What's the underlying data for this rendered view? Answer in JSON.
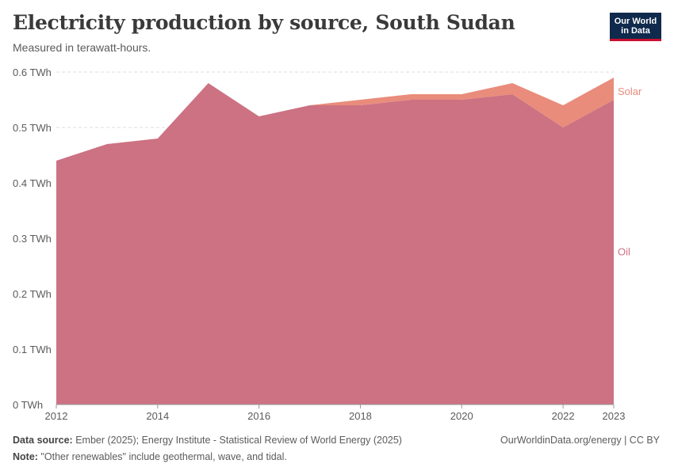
{
  "header": {
    "title": "Electricity production by source, South Sudan",
    "subtitle": "Measured in terawatt-hours."
  },
  "logo": {
    "line1": "Our World",
    "line2": "in Data"
  },
  "footer": {
    "source_label": "Data source:",
    "source_text": "Ember (2025); Energy Institute - Statistical Review of World Energy (2025)",
    "note_label": "Note:",
    "note_text": "\"Other renewables\" include geothermal, wave, and tidal.",
    "link_text": "OurWorldinData.org/energy | CC BY"
  },
  "chart_data": {
    "type": "area",
    "stacked": true,
    "title": "Electricity production by source, South Sudan",
    "ylabel": "TWh",
    "x": [
      2012,
      2013,
      2014,
      2015,
      2016,
      2017,
      2018,
      2019,
      2020,
      2021,
      2022,
      2023
    ],
    "xticks": [
      2012,
      2014,
      2016,
      2018,
      2020,
      2022,
      2023
    ],
    "yticks": [
      0,
      0.1,
      0.2,
      0.3,
      0.4,
      0.5,
      0.6
    ],
    "ytick_labels": [
      "0 TWh",
      "0.1 TWh",
      "0.2 TWh",
      "0.3 TWh",
      "0.4 TWh",
      "0.5 TWh",
      "0.6 TWh"
    ],
    "ylim": [
      0,
      0.6
    ],
    "series": [
      {
        "name": "Oil",
        "color": "#cc7283",
        "values": [
          0.44,
          0.47,
          0.48,
          0.58,
          0.52,
          0.54,
          0.54,
          0.55,
          0.55,
          0.56,
          0.5,
          0.55
        ]
      },
      {
        "name": "Solar",
        "color": "#e98c7b",
        "values": [
          0,
          0,
          0,
          0,
          0,
          0,
          0.01,
          0.01,
          0.01,
          0.02,
          0.04,
          0.04
        ]
      }
    ]
  }
}
